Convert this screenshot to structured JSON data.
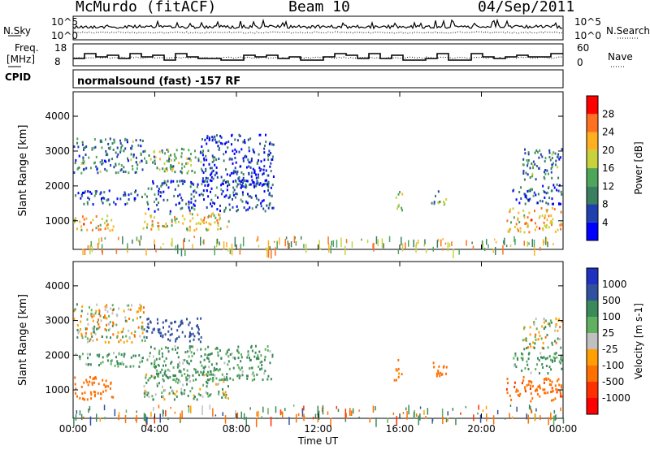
{
  "header": {
    "station": "McMurdo (fitACF)",
    "beam": "Beam 10",
    "date": "04/Sep/2011"
  },
  "panels": {
    "nsky_label": "N.Sky",
    "nsky_ticks": [
      "10^5",
      "10^0"
    ],
    "nsearch_label": "N.Search",
    "nsearch_ticks": [
      "10^5",
      "10^0"
    ],
    "freq_label_1": "Freq.",
    "freq_label_2": "[MHz]",
    "freq_ticks": [
      "18",
      "8"
    ],
    "nave_label": "Nave",
    "nave_ticks": [
      "60",
      "0"
    ],
    "cpid_label": "CPID",
    "cpid_text": "normalsound (fast) -157 RF"
  },
  "chart_data": [
    {
      "type": "heatmap",
      "title": "",
      "xlabel": "",
      "ylabel": "Slant Range [km]",
      "x_ticks": [
        "00:00",
        "04:00",
        "08:00",
        "12:00",
        "16:00",
        "20:00",
        "00:00"
      ],
      "y_ticks": [
        1000,
        2000,
        3000,
        4000
      ],
      "ylim": [
        180,
        4700
      ],
      "colorbar": {
        "label": "Power [dB]",
        "ticks": [
          4,
          8,
          12,
          16,
          20,
          24,
          28
        ],
        "colors": [
          "#0000ff",
          "#2040b0",
          "#3a8060",
          "#4ea65a",
          "#c8d23c",
          "#ffb020",
          "#ff7020",
          "#ff0000"
        ]
      },
      "echo_regions": [
        {
          "t0": 0.0,
          "t1": 2.0,
          "r0": 750,
          "r1": 1200,
          "p": 22
        },
        {
          "t0": 0.0,
          "t1": 3.6,
          "r0": 1500,
          "r1": 1900,
          "p": 6
        },
        {
          "t0": 0.0,
          "t1": 3.5,
          "r0": 2400,
          "r1": 3400,
          "p": 10
        },
        {
          "t0": 3.4,
          "t1": 7.6,
          "r0": 750,
          "r1": 1250,
          "p": 20
        },
        {
          "t0": 3.6,
          "t1": 9.8,
          "r0": 1300,
          "r1": 2200,
          "p": 6
        },
        {
          "t0": 3.5,
          "t1": 6.3,
          "r0": 2400,
          "r1": 3100,
          "p": 14
        },
        {
          "t0": 6.2,
          "t1": 9.8,
          "r0": 2000,
          "r1": 3500,
          "p": 4
        },
        {
          "t0": 15.7,
          "t1": 16.1,
          "r0": 1300,
          "r1": 1900,
          "p": 14
        },
        {
          "t0": 17.5,
          "t1": 18.3,
          "r0": 1500,
          "r1": 1900,
          "p": 12
        },
        {
          "t0": 21.2,
          "t1": 24.0,
          "r0": 700,
          "r1": 1400,
          "p": 22
        },
        {
          "t0": 21.5,
          "t1": 24.0,
          "r0": 1500,
          "r1": 2100,
          "p": 6
        },
        {
          "t0": 22.0,
          "t1": 24.0,
          "r0": 2200,
          "r1": 3100,
          "p": 10
        }
      ]
    },
    {
      "type": "heatmap",
      "title": "",
      "xlabel": "Time UT",
      "ylabel": "Slant Range [km]",
      "x_ticks": [
        "00:00",
        "04:00",
        "08:00",
        "12:00",
        "16:00",
        "20:00",
        "00:00"
      ],
      "y_ticks": [
        1000,
        2000,
        3000,
        4000
      ],
      "ylim": [
        180,
        4700
      ],
      "colorbar": {
        "label": "Velocity [m s-1]",
        "ticks": [
          1000,
          500,
          100,
          25,
          -25,
          -100,
          -500,
          -1000
        ],
        "colors": [
          "#2030c0",
          "#3050a0",
          "#3a8a5a",
          "#60b060",
          "#c0c0c0",
          "#ffa000",
          "#ff7000",
          "#ff3000",
          "#ff0000"
        ]
      },
      "echo_regions": [
        {
          "t0": 0.0,
          "t1": 2.0,
          "r0": 750,
          "r1": 1400,
          "v": -300
        },
        {
          "t0": 0.0,
          "t1": 3.6,
          "r0": 1700,
          "r1": 2100,
          "v": 150
        },
        {
          "t0": 0.0,
          "t1": 3.5,
          "r0": 2400,
          "r1": 3500,
          "v": 0
        },
        {
          "t0": 3.4,
          "t1": 7.6,
          "r0": 750,
          "r1": 1500,
          "v": 80
        },
        {
          "t0": 3.6,
          "t1": 9.8,
          "r0": 1300,
          "r1": 2300,
          "v": 150
        },
        {
          "t0": 3.5,
          "t1": 6.3,
          "r0": 2400,
          "r1": 3100,
          "v": 800
        },
        {
          "t0": 15.7,
          "t1": 16.1,
          "r0": 1300,
          "r1": 1900,
          "v": -200
        },
        {
          "t0": 17.5,
          "t1": 18.3,
          "r0": 1400,
          "r1": 1900,
          "v": -300
        },
        {
          "t0": 21.2,
          "t1": 24.0,
          "r0": 700,
          "r1": 1400,
          "v": -400
        },
        {
          "t0": 21.5,
          "t1": 24.0,
          "r0": 1500,
          "r1": 2100,
          "v": 150
        },
        {
          "t0": 22.0,
          "t1": 24.0,
          "r0": 2200,
          "r1": 3100,
          "v": 0
        }
      ]
    }
  ]
}
